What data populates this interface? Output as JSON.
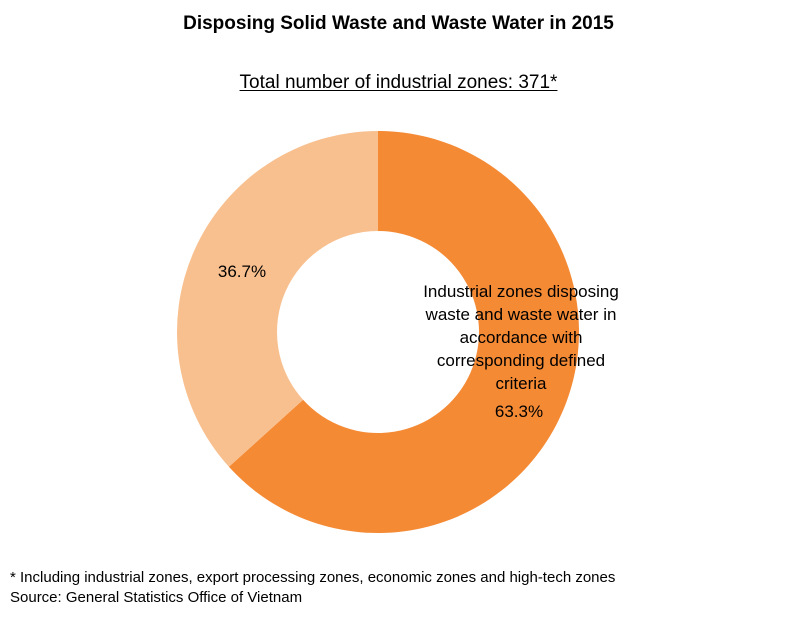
{
  "chart_data": {
    "type": "pie",
    "title": "Disposing Solid Waste and Waste Water in 2015",
    "subtitle": "Total number of industrial zones: 371*",
    "slices": [
      {
        "label": "Industrial zones disposing waste and waste water in accordance with corresponding defined criteria",
        "label_lines": [
          "Industrial zones disposing",
          "waste and waste water in",
          "accordance with",
          "corresponding defined",
          "criteria"
        ],
        "value": 63.3,
        "value_label": "63.3%",
        "color": "#F58A35"
      },
      {
        "label": "",
        "value": 36.7,
        "value_label": "36.7%",
        "color": "#F9C08F"
      }
    ],
    "donut": true
  },
  "footnotes": {
    "note": "* Including industrial zones, export processing zones, economic zones and high-tech zones",
    "source": "Source: General Statistics Office of Vietnam"
  }
}
